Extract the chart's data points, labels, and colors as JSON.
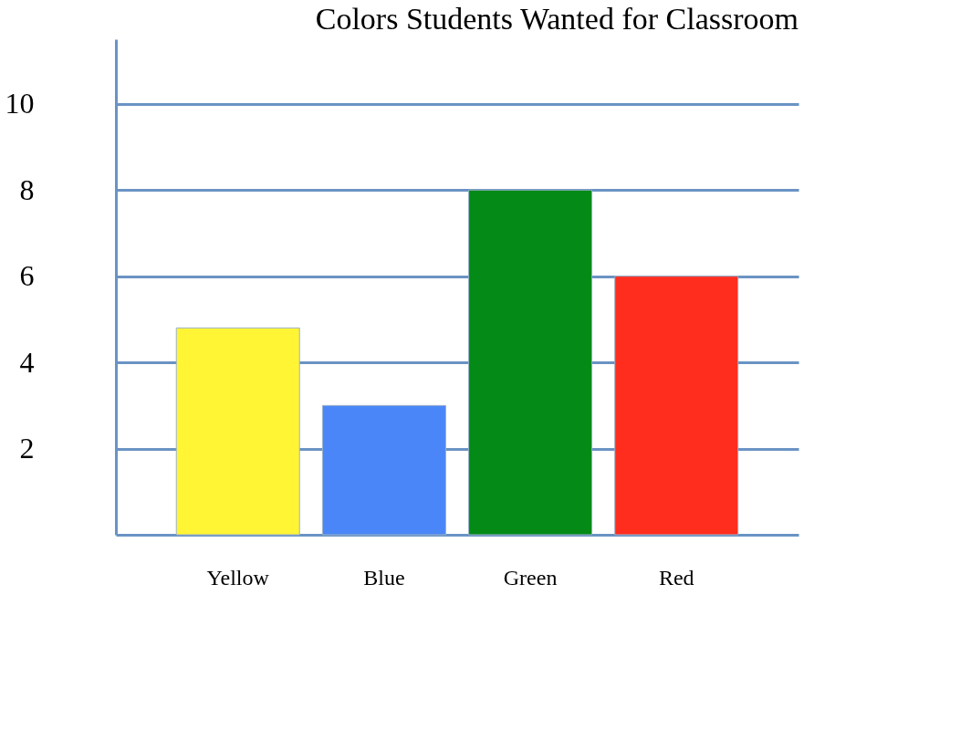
{
  "chart_data": {
    "type": "bar",
    "title": "Colors Students Wanted for Classroom",
    "categories": [
      "Yellow",
      "Blue",
      "Green",
      "Red"
    ],
    "values": [
      4.8,
      3.0,
      8.0,
      6.0
    ],
    "colors": [
      "#fff535",
      "#4a86f7",
      "#038a17",
      "#ff2d1e"
    ],
    "ylim": [
      0,
      11.5
    ],
    "yticks": [
      2,
      4,
      6,
      8,
      10
    ],
    "grid": "y"
  }
}
